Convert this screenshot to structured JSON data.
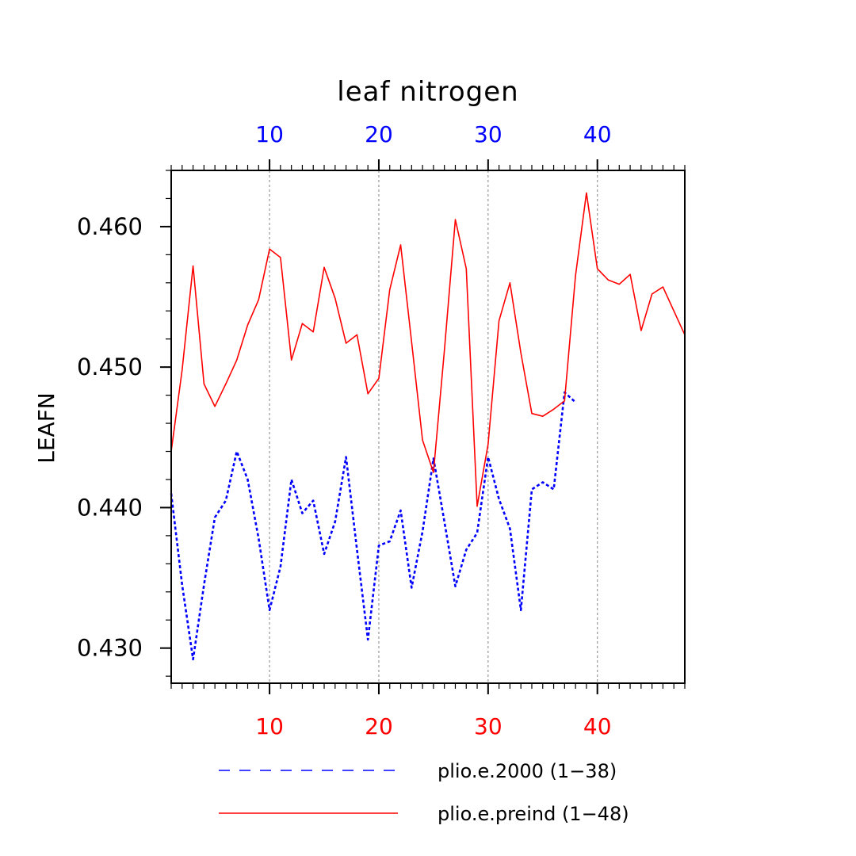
{
  "chart_data": {
    "type": "line",
    "title": "leaf nitrogen",
    "ylabel": "LEAFN",
    "xlim": [
      1,
      48
    ],
    "ylim": [
      0.4275,
      0.464
    ],
    "y_ticks": [
      0.43,
      0.44,
      0.45,
      0.46
    ],
    "y_tick_labels": [
      "0.430",
      "0.440",
      "0.450",
      "0.460"
    ],
    "y_minor_step": 0.002,
    "bottom_axis": {
      "color": "#ff0000",
      "ticks": [
        10,
        20,
        30,
        40
      ],
      "tick_labels": [
        "10",
        "20",
        "30",
        "40"
      ]
    },
    "top_axis": {
      "color": "#0000ff",
      "ticks": [
        10,
        20,
        30,
        40
      ],
      "tick_labels": [
        "10",
        "20",
        "30",
        "40"
      ]
    },
    "gridlines_x": [
      10,
      20,
      30,
      40
    ],
    "series": [
      {
        "name": "plio.e.2000 (1−38)",
        "color": "#0000ff",
        "style": "dashed",
        "x": [
          1,
          2,
          3,
          4,
          5,
          6,
          7,
          8,
          9,
          10,
          11,
          12,
          13,
          14,
          15,
          16,
          17,
          18,
          19,
          20,
          21,
          22,
          23,
          24,
          25,
          26,
          27,
          28,
          29,
          30,
          31,
          32,
          33,
          34,
          35,
          36,
          37,
          38
        ],
        "values": [
          0.441,
          0.4345,
          0.4292,
          0.4345,
          0.4393,
          0.4405,
          0.444,
          0.442,
          0.4378,
          0.4327,
          0.4358,
          0.442,
          0.4396,
          0.4405,
          0.4367,
          0.439,
          0.4436,
          0.437,
          0.4306,
          0.4373,
          0.4376,
          0.4398,
          0.4343,
          0.4383,
          0.4435,
          0.439,
          0.4344,
          0.437,
          0.4382,
          0.4436,
          0.4406,
          0.4385,
          0.4327,
          0.4413,
          0.4418,
          0.4413,
          0.4482,
          0.4475
        ]
      },
      {
        "name": "plio.e.preind (1−48)",
        "color": "#ff0000",
        "style": "solid",
        "x": [
          1,
          2,
          3,
          4,
          5,
          6,
          7,
          8,
          9,
          10,
          11,
          12,
          13,
          14,
          15,
          16,
          17,
          18,
          19,
          20,
          21,
          22,
          23,
          24,
          25,
          26,
          27,
          28,
          29,
          30,
          31,
          32,
          33,
          34,
          35,
          36,
          37,
          38,
          39,
          40,
          41,
          42,
          43,
          44,
          45,
          46,
          47,
          48
        ],
        "values": [
          0.444,
          0.4498,
          0.4572,
          0.4488,
          0.4472,
          0.4488,
          0.4505,
          0.453,
          0.4548,
          0.4584,
          0.4578,
          0.4505,
          0.4531,
          0.4525,
          0.4571,
          0.4549,
          0.4517,
          0.4523,
          0.4481,
          0.4492,
          0.4555,
          0.4587,
          0.4518,
          0.4448,
          0.4425,
          0.4512,
          0.4605,
          0.457,
          0.4401,
          0.4445,
          0.4533,
          0.456,
          0.451,
          0.4467,
          0.4465,
          0.447,
          0.4476,
          0.4565,
          0.4624,
          0.457,
          0.4562,
          0.4559,
          0.4566,
          0.4526,
          0.4552,
          0.4557,
          0.454,
          0.4523
        ]
      }
    ],
    "legend": {
      "position": "bottom",
      "entries": [
        "plio.e.2000 (1−38)",
        "plio.e.preind (1−48)"
      ]
    }
  }
}
